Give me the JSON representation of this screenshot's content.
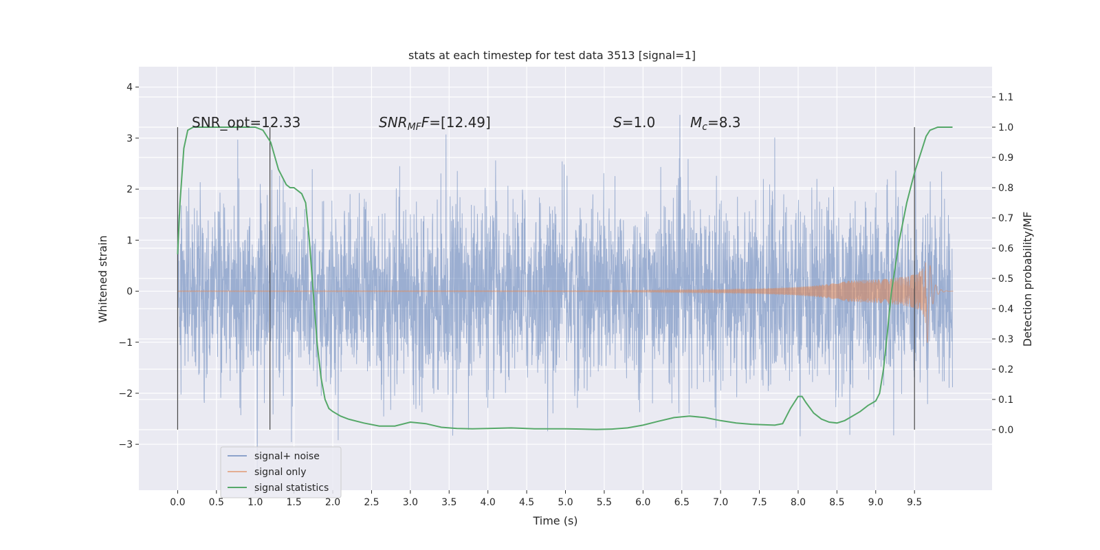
{
  "chart_data": {
    "type": "line",
    "title": "stats at each timestep for test data 3513 [signal=1]",
    "xlabel": "Time (s)",
    "ylabel": "Whitened strain",
    "ylabel_right": "Detection probability/MF",
    "xlim": [
      -0.5,
      10.5
    ],
    "ylim": [
      -3.9,
      4.4
    ],
    "ylim_right": [
      -0.2,
      1.2
    ],
    "x_ticks": [
      "0.0",
      "0.5",
      "1.0",
      "1.5",
      "2.0",
      "2.5",
      "3.0",
      "3.5",
      "4.0",
      "4.5",
      "5.0",
      "5.5",
      "6.0",
      "6.5",
      "7.0",
      "7.5",
      "8.0",
      "8.5",
      "9.0",
      "9.5"
    ],
    "x_tick_values": [
      0,
      0.5,
      1,
      1.5,
      2,
      2.5,
      3,
      3.5,
      4,
      4.5,
      5,
      5.5,
      6,
      6.5,
      7,
      7.5,
      8,
      8.5,
      9,
      9.5
    ],
    "y_ticks": [
      "−3",
      "−2",
      "−1",
      "0",
      "1",
      "2",
      "3",
      "4"
    ],
    "y_tick_values": [
      -3,
      -2,
      -1,
      0,
      1,
      2,
      3,
      4
    ],
    "y_right_ticks": [
      "0.0",
      "0.1",
      "0.2",
      "0.3",
      "0.4",
      "0.5",
      "0.6",
      "0.7",
      "0.8",
      "0.9",
      "1.0",
      "1.1"
    ],
    "y_right_tick_values": [
      0,
      0.1,
      0.2,
      0.3,
      0.4,
      0.5,
      0.6,
      0.7,
      0.8,
      0.9,
      1.0,
      1.1
    ],
    "grid": true,
    "legend_position": "lower-left",
    "annotations": {
      "snr_opt": "SNR_opt=12.33",
      "snr_mf_prefix": "SNR",
      "snr_mf_sub": "MF",
      "snr_mf_value": "=[12.49]",
      "s_var": "S",
      "s_value": "=1.0",
      "mc_var": "M",
      "mc_sub": "c",
      "mc_value": "=8.3"
    },
    "vertical_markers_x": [
      0.0,
      1.19,
      9.5
    ],
    "series": [
      {
        "name": "signal+ noise",
        "color": "#4c72b0",
        "description_x_range": [
          0.0,
          9.99
        ],
        "noise_envelope": {
          "typical_abs": 1.45,
          "extreme_max": 4.05,
          "extreme_min": -3.5
        }
      },
      {
        "name": "signal only",
        "color": "#dd8452",
        "chirp": {
          "x_start": 0.0,
          "x_merger": 9.65,
          "x_end": 10.0,
          "amplitude_start": 0.01,
          "amplitude_merger": 1.45
        }
      },
      {
        "name": "signal statistics",
        "color": "#55a868",
        "axis": "right",
        "x": [
          0.0,
          0.03,
          0.08,
          0.13,
          0.2,
          0.3,
          0.5,
          0.7,
          0.9,
          1.0,
          1.1,
          1.2,
          1.3,
          1.4,
          1.45,
          1.5,
          1.6,
          1.65,
          1.7,
          1.75,
          1.8,
          1.85,
          1.9,
          1.95,
          2.0,
          2.1,
          2.2,
          2.4,
          2.6,
          2.8,
          3.0,
          3.2,
          3.4,
          3.6,
          3.8,
          4.0,
          4.3,
          4.6,
          5.0,
          5.2,
          5.4,
          5.6,
          5.8,
          6.0,
          6.2,
          6.4,
          6.6,
          6.8,
          7.0,
          7.2,
          7.4,
          7.6,
          7.7,
          7.8,
          7.9,
          8.0,
          8.05,
          8.1,
          8.2,
          8.3,
          8.4,
          8.5,
          8.6,
          8.7,
          8.8,
          8.9,
          9.0,
          9.05,
          9.1,
          9.15,
          9.2,
          9.3,
          9.4,
          9.5,
          9.6,
          9.65,
          9.7,
          9.8,
          9.9,
          9.99
        ],
        "y": [
          0.58,
          0.75,
          0.93,
          0.99,
          1.0,
          1.0,
          1.0,
          1.0,
          1.0,
          1.0,
          0.99,
          0.95,
          0.86,
          0.81,
          0.8,
          0.8,
          0.78,
          0.75,
          0.62,
          0.45,
          0.28,
          0.17,
          0.1,
          0.07,
          0.06,
          0.045,
          0.035,
          0.022,
          0.012,
          0.012,
          0.025,
          0.02,
          0.008,
          0.004,
          0.003,
          0.004,
          0.006,
          0.003,
          0.003,
          0.002,
          0.001,
          0.002,
          0.006,
          0.015,
          0.028,
          0.04,
          0.045,
          0.04,
          0.03,
          0.022,
          0.018,
          0.016,
          0.015,
          0.02,
          0.07,
          0.11,
          0.11,
          0.09,
          0.055,
          0.035,
          0.025,
          0.022,
          0.03,
          0.045,
          0.06,
          0.08,
          0.095,
          0.12,
          0.2,
          0.32,
          0.45,
          0.62,
          0.75,
          0.85,
          0.93,
          0.97,
          0.99,
          1.0,
          1.0,
          1.0
        ]
      }
    ]
  }
}
